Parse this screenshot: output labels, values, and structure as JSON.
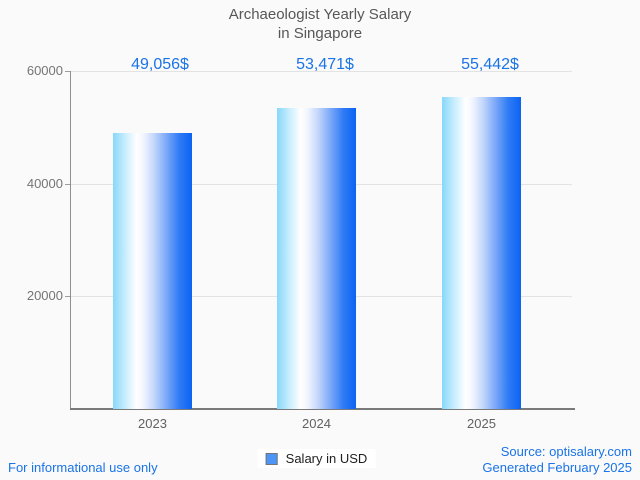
{
  "title": {
    "line1": "Archaeologist Yearly Salary",
    "line2": "in Singapore"
  },
  "legend": {
    "label": "Salary in USD",
    "swatch_color": "#4d96f7"
  },
  "footer": {
    "disclaimer": "For informational use only",
    "source": "Source: optisalary.com",
    "generated": "Generated February 2025"
  },
  "colors": {
    "background": "#fafafa",
    "accent_blue": "#1a73e8",
    "title_gray": "#575757",
    "axis_label_gray": "#757575",
    "gridline": "#e3e3e3",
    "bar_gradient_left": "#87d7fa",
    "bar_gradient_mid": "#ffffff",
    "bar_gradient_right": "#0b63f2"
  },
  "chart_data": {
    "type": "bar",
    "title": "Archaeologist Yearly Salary in Singapore",
    "categories": [
      "2023",
      "2024",
      "2025"
    ],
    "values": [
      49056,
      53471,
      55442
    ],
    "value_labels": [
      "49,056$",
      "53,471$",
      "55,442$"
    ],
    "series": [
      {
        "name": "Salary in USD",
        "values": [
          49056,
          53471,
          55442
        ]
      }
    ],
    "xlabel": "",
    "ylabel": "",
    "ylim": [
      0,
      60000
    ],
    "yticks": [
      {
        "value": 20000,
        "label": "20000"
      },
      {
        "value": 40000,
        "label": "40000"
      },
      {
        "value": 60000,
        "label": "60000"
      }
    ],
    "grid": true,
    "legend_position": "bottom"
  }
}
